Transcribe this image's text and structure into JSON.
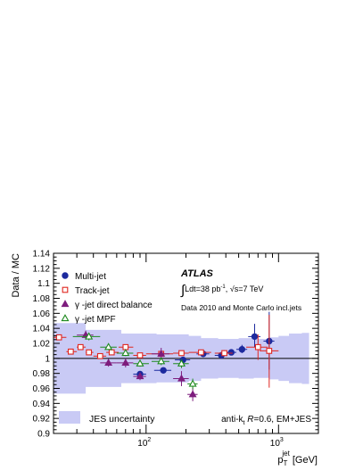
{
  "chart_data": {
    "type": "scatter",
    "title": "",
    "ylabel": "Data / MC",
    "xlabel": {
      "main": "p",
      "sub": "T",
      "sup": "jet",
      "unit": " [GeV]"
    },
    "x_scale": "log",
    "xlim": [
      20,
      2000
    ],
    "ylim": [
      0.9,
      1.14
    ],
    "yticks": [
      0.9,
      0.92,
      0.94,
      0.96,
      0.98,
      1,
      1.02,
      1.04,
      1.06,
      1.08,
      1.1,
      1.12,
      1.14
    ],
    "ytick_labels": [
      "0.9",
      "0.92",
      "0.94",
      "0.96",
      "0.98",
      "1",
      "1.02",
      "1.04",
      "1.06",
      "1.08",
      "1.1",
      "1.12",
      "1.14"
    ],
    "xtick_major": [
      {
        "value": 100,
        "base": "10",
        "exp": "2"
      },
      {
        "value": 1000,
        "base": "10",
        "exp": "3"
      }
    ],
    "reference_line": 1.0,
    "annotations": {
      "experiment": "ATLAS",
      "lumi": {
        "int_symbol": "∫",
        "pre": "Ldt=38 pb",
        "sup": "-1",
        "mid": ", ",
        "sqrt": "√",
        "post": "s=7 TeV"
      },
      "dataset": "Data 2010 and Monte Carlo incl.jets",
      "algorithm": {
        "pre": "anti-k",
        "sub": "t",
        "mid": " ",
        "r": "R",
        "post": "=0.6, EM+JES"
      }
    },
    "legend": {
      "placement": "top-left"
    },
    "uncertainty_band": {
      "name": "JES uncertainty",
      "color": "#c9caf5",
      "x_edges": [
        20,
        27,
        35,
        48,
        65,
        80,
        120,
        160,
        210,
        260,
        350,
        500,
        650,
        850,
        1000,
        1200,
        1500,
        1700
      ],
      "lower": [
        0.953,
        0.953,
        0.962,
        0.962,
        0.967,
        0.967,
        0.968,
        0.968,
        0.97,
        0.973,
        0.974,
        0.973,
        0.974,
        0.972,
        0.97,
        0.967,
        0.966,
        0.966
      ],
      "upper": [
        1.047,
        1.047,
        1.038,
        1.038,
        1.033,
        1.033,
        1.032,
        1.032,
        1.03,
        1.027,
        1.026,
        1.027,
        1.026,
        1.028,
        1.03,
        1.033,
        1.034,
        1.034
      ]
    },
    "series": [
      {
        "name": "Multi-jet",
        "marker": "circle-filled",
        "color": "#1c2a9e",
        "points": [
          {
            "x": 90,
            "y": 0.979,
            "xerr": [
              80,
              100
            ],
            "ylo": 0.975,
            "yhi": 0.983
          },
          {
            "x": 135,
            "y": 0.984,
            "xerr": [
              115,
              155
            ],
            "ylo": 0.981,
            "yhi": 0.987
          },
          {
            "x": 190,
            "y": 0.998,
            "xerr": [
              165,
              215
            ],
            "ylo": 0.995,
            "yhi": 1.001
          },
          {
            "x": 270,
            "y": 1.006,
            "xerr": [
              240,
              300
            ],
            "ylo": 1.004,
            "yhi": 1.008
          },
          {
            "x": 370,
            "y": 1.004,
            "xerr": [
              330,
              410
            ],
            "ylo": 1.001,
            "yhi": 1.007
          },
          {
            "x": 440,
            "y": 1.008,
            "xerr": [
              400,
              480
            ],
            "ylo": 1.005,
            "yhi": 1.011
          },
          {
            "x": 530,
            "y": 1.012,
            "xerr": [
              480,
              580
            ],
            "ylo": 1.007,
            "yhi": 1.018
          },
          {
            "x": 660,
            "y": 1.029,
            "xerr": [
              590,
              730
            ],
            "ylo": 1.015,
            "yhi": 1.046
          },
          {
            "x": 850,
            "y": 1.023,
            "xerr": [
              770,
              930
            ],
            "ylo": 0.985,
            "yhi": 1.062
          }
        ]
      },
      {
        "name": "Track-jet",
        "marker": "square-open",
        "color": "#e0261f",
        "points": [
          {
            "x": 22,
            "y": 1.028,
            "xerr": [
              20,
              25
            ],
            "ylo": 1.026,
            "yhi": 1.03
          },
          {
            "x": 27,
            "y": 1.009,
            "xerr": [
              25,
              30
            ],
            "ylo": 1.007,
            "yhi": 1.011
          },
          {
            "x": 32,
            "y": 1.015,
            "xerr": [
              30,
              35
            ],
            "ylo": 1.013,
            "yhi": 1.017
          },
          {
            "x": 37,
            "y": 1.008,
            "xerr": [
              35,
              40
            ],
            "ylo": 1.006,
            "yhi": 1.01
          },
          {
            "x": 45,
            "y": 1.003,
            "xerr": [
              40,
              50
            ],
            "ylo": 1.001,
            "yhi": 1.005
          },
          {
            "x": 55,
            "y": 1.008,
            "xerr": [
              50,
              62
            ],
            "ylo": 1.006,
            "yhi": 1.01
          },
          {
            "x": 70,
            "y": 1.015,
            "xerr": [
              62,
              80
            ],
            "ylo": 1.013,
            "yhi": 1.017
          },
          {
            "x": 90,
            "y": 1.004,
            "xerr": [
              80,
              100
            ],
            "ylo": 1.001,
            "yhi": 1.007
          },
          {
            "x": 130,
            "y": 1.006,
            "xerr": [
              100,
              160
            ],
            "ylo": 1.003,
            "yhi": 1.009
          },
          {
            "x": 185,
            "y": 1.007,
            "xerr": [
              160,
              210
            ],
            "ylo": 1.004,
            "yhi": 1.01
          },
          {
            "x": 260,
            "y": 1.008,
            "xerr": [
              210,
              310
            ],
            "ylo": 1.005,
            "yhi": 1.011
          },
          {
            "x": 390,
            "y": 1.007,
            "xerr": [
              330,
              450
            ],
            "ylo": 1.003,
            "yhi": 1.011
          },
          {
            "x": 700,
            "y": 1.015,
            "xerr": [
              570,
              830
            ],
            "ylo": 0.998,
            "yhi": 1.032
          },
          {
            "x": 850,
            "y": 1.01,
            "xerr": [
              720,
              1000
            ],
            "ylo": 0.961,
            "yhi": 1.058
          }
        ]
      },
      {
        "name": "γ -jet direct balance",
        "marker": "triangle-filled",
        "color": "#7d1c7d",
        "points": [
          {
            "x": 35,
            "y": 1.031,
            "xerr": [
              30,
              40
            ],
            "ylo": 1.025,
            "yhi": 1.037
          },
          {
            "x": 52,
            "y": 0.994,
            "xerr": [
              45,
              60
            ],
            "ylo": 0.989,
            "yhi": 0.999
          },
          {
            "x": 70,
            "y": 0.994,
            "xerr": [
              60,
              80
            ],
            "ylo": 0.988,
            "yhi": 1.0
          },
          {
            "x": 90,
            "y": 0.976,
            "xerr": [
              80,
              100
            ],
            "ylo": 0.971,
            "yhi": 0.981
          },
          {
            "x": 130,
            "y": 1.006,
            "xerr": [
              110,
              150
            ],
            "ylo": 0.998,
            "yhi": 1.014
          },
          {
            "x": 185,
            "y": 0.973,
            "xerr": [
              160,
              210
            ],
            "ylo": 0.963,
            "yhi": 0.983
          },
          {
            "x": 225,
            "y": 0.952,
            "xerr": [
              205,
              245
            ],
            "ylo": 0.943,
            "yhi": 0.961
          }
        ]
      },
      {
        "name": "γ -jet MPF",
        "marker": "triangle-open",
        "color": "#1f8a1f",
        "points": [
          {
            "x": 37,
            "y": 1.029,
            "xerr": [
              28,
              45
            ],
            "ylo": 1.024,
            "yhi": 1.034
          },
          {
            "x": 52,
            "y": 1.015,
            "xerr": [
              45,
              60
            ],
            "ylo": 1.011,
            "yhi": 1.019
          },
          {
            "x": 70,
            "y": 1.007,
            "xerr": [
              60,
              80
            ],
            "ylo": 1.003,
            "yhi": 1.011
          },
          {
            "x": 90,
            "y": 0.993,
            "xerr": [
              80,
              105
            ],
            "ylo": 0.989,
            "yhi": 0.997
          },
          {
            "x": 130,
            "y": 0.996,
            "xerr": [
              110,
              150
            ],
            "ylo": 0.991,
            "yhi": 1.001
          },
          {
            "x": 185,
            "y": 0.993,
            "xerr": [
              160,
              210
            ],
            "ylo": 0.987,
            "yhi": 0.999
          },
          {
            "x": 225,
            "y": 0.966,
            "xerr": [
              205,
              245
            ],
            "ylo": 0.959,
            "yhi": 0.973
          }
        ]
      }
    ]
  }
}
